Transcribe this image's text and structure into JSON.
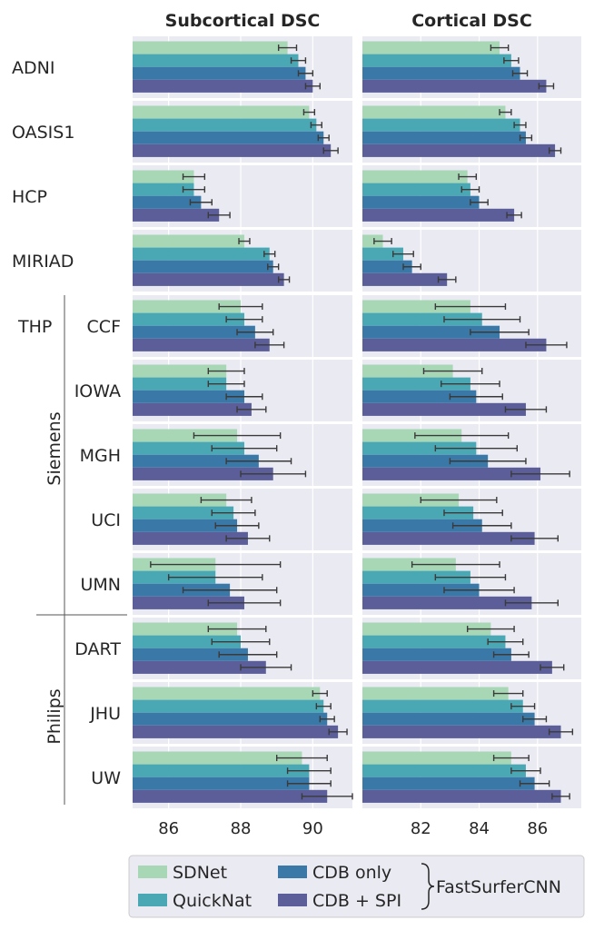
{
  "chart_data": {
    "type": "bar",
    "orientation": "horizontal",
    "grid": true,
    "legend_position": "bottom",
    "group_labels": [
      {
        "label": "Siemens",
        "rows": [
          "CCF",
          "IOWA",
          "MGH",
          "UCI",
          "UMN"
        ]
      },
      {
        "label": "Philips",
        "rows": [
          "DART",
          "JHU",
          "UW"
        ]
      },
      {
        "label": "THP",
        "rows": [
          "CCF"
        ]
      }
    ],
    "rows": [
      "ADNI",
      "OASIS1",
      "HCP",
      "MIRIAD",
      "CCF",
      "IOWA",
      "MGH",
      "UCI",
      "UMN",
      "DART",
      "JHU",
      "UW"
    ],
    "series": [
      {
        "name": "SDNet",
        "color": "#a7d7b5"
      },
      {
        "name": "QuickNat",
        "color": "#4aa8b5"
      },
      {
        "name": "CDB only",
        "color": "#3a78a8"
      },
      {
        "name": "CDB + SPI",
        "color": "#5b5e98"
      }
    ],
    "legend_bracket_label": "FastSurferCNN",
    "panels": [
      {
        "title": "Subcortical DSC",
        "xlim": [
          85,
          91.1
        ],
        "xticks": [
          86,
          88,
          90
        ],
        "values": [
          [
            89.3,
            89.6,
            89.8,
            90.0
          ],
          [
            89.9,
            90.1,
            90.3,
            90.5
          ],
          [
            86.7,
            86.7,
            86.9,
            87.4
          ],
          [
            88.1,
            88.8,
            88.9,
            89.2
          ],
          [
            88.0,
            88.1,
            88.4,
            88.8
          ],
          [
            87.6,
            87.6,
            88.1,
            88.3
          ],
          [
            87.9,
            88.1,
            88.5,
            88.9
          ],
          [
            87.6,
            87.8,
            87.9,
            88.2
          ],
          [
            87.3,
            87.3,
            87.7,
            88.1
          ],
          [
            87.9,
            88.0,
            88.2,
            88.7
          ],
          [
            90.2,
            90.3,
            90.4,
            90.7
          ],
          [
            89.7,
            89.9,
            89.9,
            90.4
          ]
        ],
        "errors": [
          [
            0.25,
            0.2,
            0.2,
            0.2
          ],
          [
            0.15,
            0.15,
            0.15,
            0.2
          ],
          [
            0.3,
            0.3,
            0.3,
            0.3
          ],
          [
            0.15,
            0.15,
            0.15,
            0.15
          ],
          [
            0.6,
            0.5,
            0.5,
            0.4
          ],
          [
            0.5,
            0.5,
            0.5,
            0.4
          ],
          [
            1.2,
            0.9,
            0.9,
            0.9
          ],
          [
            0.7,
            0.6,
            0.6,
            0.6
          ],
          [
            1.8,
            1.3,
            1.3,
            1.0
          ],
          [
            0.8,
            0.8,
            0.8,
            0.7
          ],
          [
            0.2,
            0.2,
            0.2,
            0.25
          ],
          [
            0.7,
            0.6,
            0.6,
            0.7
          ]
        ]
      },
      {
        "title": "Cortical DSC",
        "xlim": [
          80,
          87.5
        ],
        "xticks": [
          82,
          84,
          86
        ],
        "values": [
          [
            84.7,
            85.1,
            85.4,
            86.3
          ],
          [
            84.9,
            85.4,
            85.6,
            86.6
          ],
          [
            83.6,
            83.7,
            84.0,
            85.2
          ],
          [
            80.7,
            81.4,
            81.7,
            82.9
          ],
          [
            83.7,
            84.1,
            84.7,
            86.3
          ],
          [
            83.1,
            83.7,
            83.9,
            85.6
          ],
          [
            83.4,
            83.9,
            84.3,
            86.1
          ],
          [
            83.3,
            83.8,
            84.1,
            85.9
          ],
          [
            83.2,
            83.7,
            84.0,
            85.8
          ],
          [
            84.4,
            84.9,
            85.1,
            86.5
          ],
          [
            85.0,
            85.5,
            85.9,
            86.8
          ],
          [
            85.1,
            85.6,
            85.9,
            86.8
          ]
        ],
        "errors": [
          [
            0.3,
            0.25,
            0.25,
            0.25
          ],
          [
            0.2,
            0.2,
            0.2,
            0.2
          ],
          [
            0.3,
            0.3,
            0.3,
            0.25
          ],
          [
            0.3,
            0.35,
            0.3,
            0.3
          ],
          [
            1.2,
            1.3,
            1.0,
            0.7
          ],
          [
            1.0,
            1.0,
            0.9,
            0.7
          ],
          [
            1.6,
            1.4,
            1.3,
            1.0
          ],
          [
            1.3,
            1.0,
            1.0,
            0.8
          ],
          [
            1.5,
            1.2,
            1.2,
            0.9
          ],
          [
            0.8,
            0.6,
            0.6,
            0.4
          ],
          [
            0.5,
            0.4,
            0.4,
            0.4
          ],
          [
            0.6,
            0.5,
            0.5,
            0.3
          ]
        ]
      }
    ]
  }
}
